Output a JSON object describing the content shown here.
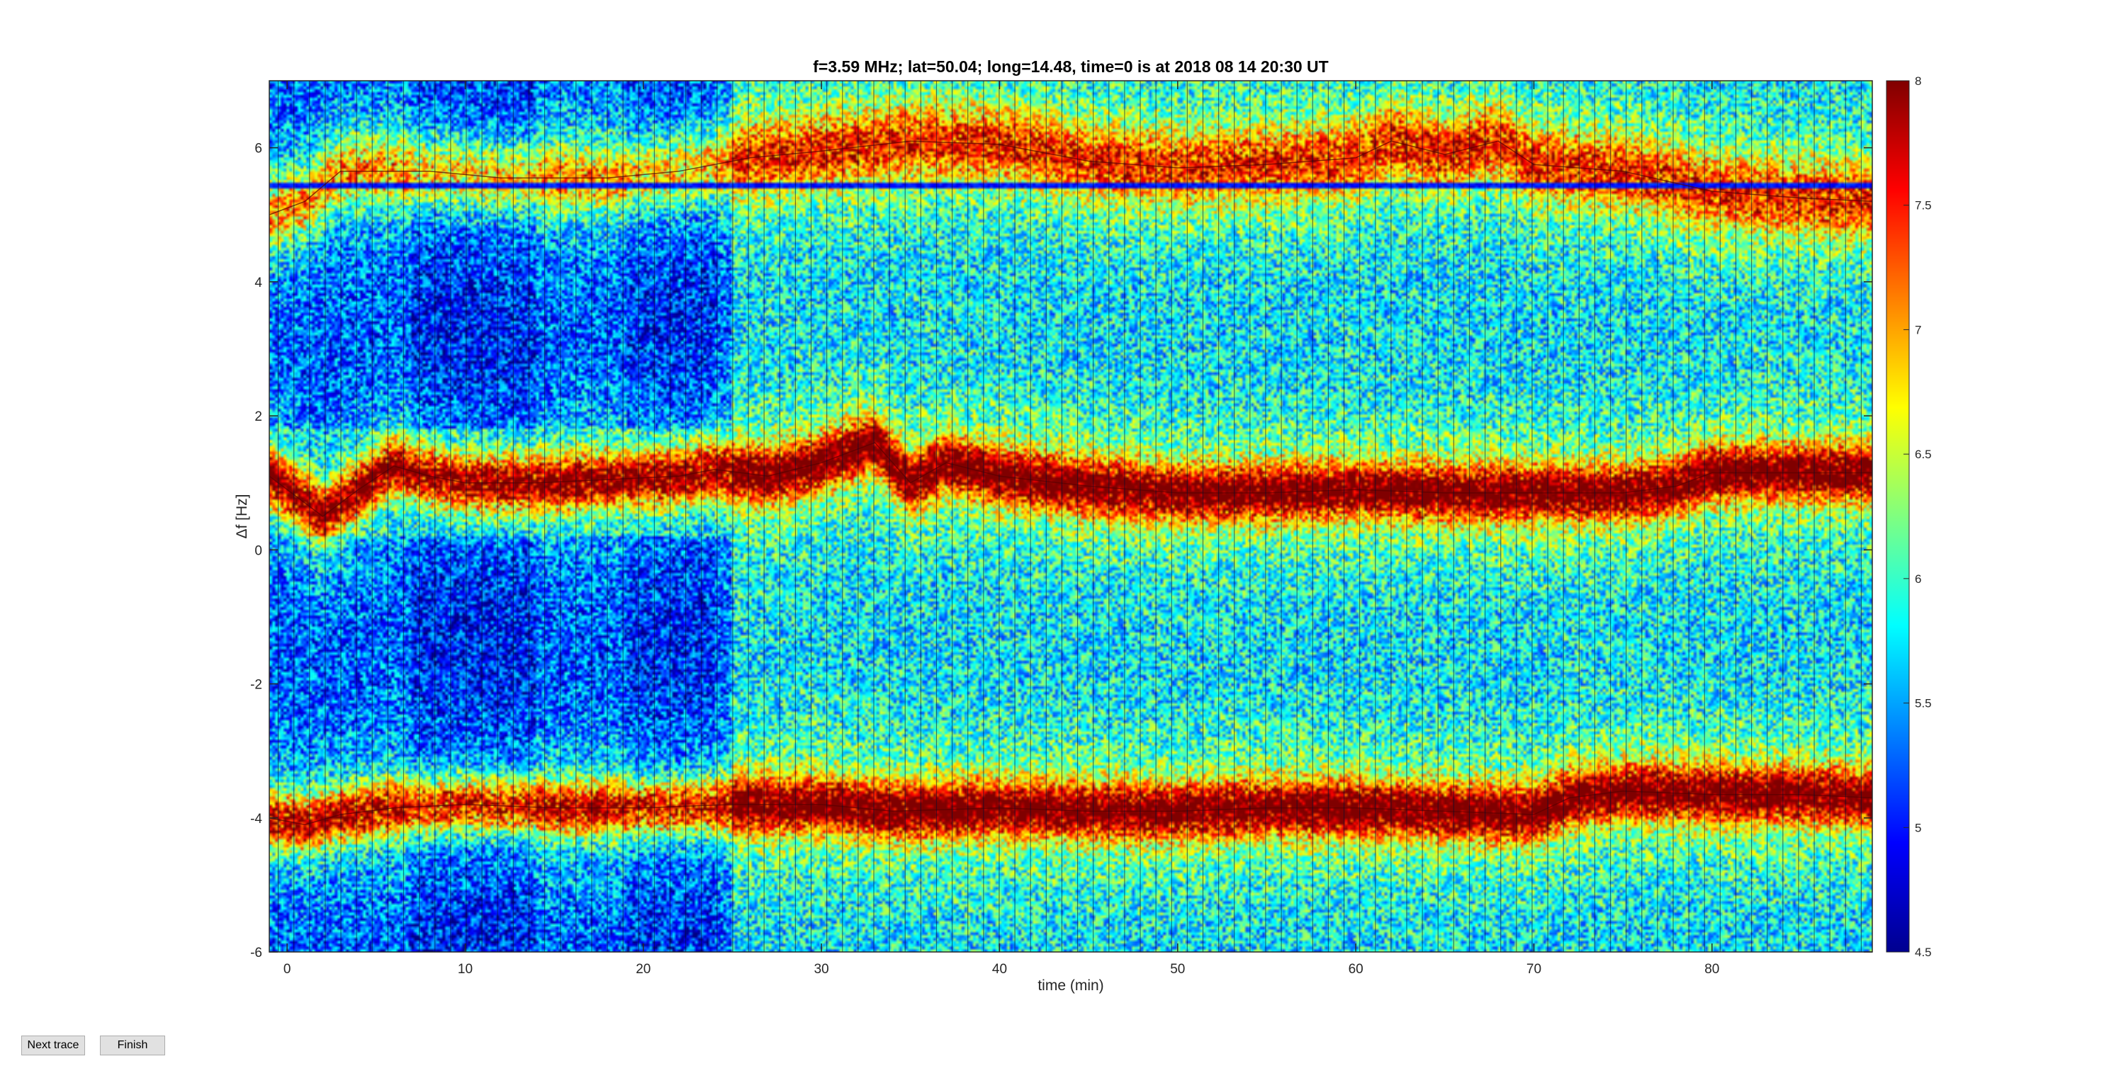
{
  "chart_data": {
    "type": "heatmap",
    "title": "f=3.59 MHz;  lat=50.04; long=14.48, time=0 is at 2018 08 14 20:30 UT",
    "xlabel": "time (min)",
    "ylabel": "Δf [Hz]",
    "xlim": [
      -1,
      89
    ],
    "ylim": [
      -6,
      7
    ],
    "xticks": [
      0,
      10,
      20,
      30,
      40,
      50,
      60,
      70,
      80
    ],
    "xtick_labels": [
      "0",
      "10",
      "20",
      "30",
      "40",
      "50",
      "60",
      "70",
      "80"
    ],
    "yticks": [
      -6,
      -4,
      -2,
      0,
      2,
      4,
      6
    ],
    "ytick_labels": [
      "-6",
      "-4",
      "-2",
      "0",
      "2",
      "4",
      "6"
    ],
    "colormap": "jet",
    "clim": [
      4.5,
      8
    ],
    "colorbar_ticks": [
      4.5,
      5,
      5.5,
      6,
      6.5,
      7,
      7.5,
      8
    ],
    "colorbar_tick_labels": [
      "4.5",
      "5",
      "5.5",
      "6",
      "6.5",
      "7",
      "7.5",
      "8"
    ],
    "dark_band_level": 5.45,
    "traces": [
      {
        "description_key": "central",
        "points": [
          [
            -1,
            1.1
          ],
          [
            1,
            0.7
          ],
          [
            2,
            0.5
          ],
          [
            4,
            0.9
          ],
          [
            6,
            1.25
          ],
          [
            8,
            1.1
          ],
          [
            10,
            1.0
          ],
          [
            14,
            1.0
          ],
          [
            18,
            1.05
          ],
          [
            22,
            1.1
          ],
          [
            24,
            1.2
          ],
          [
            27,
            1.1
          ],
          [
            30,
            1.3
          ],
          [
            33,
            1.6
          ],
          [
            35,
            1.0
          ],
          [
            37,
            1.3
          ],
          [
            40,
            1.1
          ],
          [
            45,
            0.95
          ],
          [
            50,
            0.85
          ],
          [
            55,
            0.85
          ],
          [
            60,
            0.9
          ],
          [
            65,
            0.85
          ],
          [
            70,
            0.85
          ],
          [
            75,
            0.85
          ],
          [
            78,
            0.95
          ],
          [
            80,
            1.15
          ],
          [
            84,
            1.15
          ],
          [
            89,
            1.15
          ]
        ]
      },
      {
        "description_key": "lower",
        "points": [
          [
            -1,
            -4.0
          ],
          [
            1,
            -4.1
          ],
          [
            3,
            -3.95
          ],
          [
            6,
            -3.85
          ],
          [
            10,
            -3.8
          ],
          [
            15,
            -3.85
          ],
          [
            20,
            -3.85
          ],
          [
            25,
            -3.8
          ],
          [
            30,
            -3.8
          ],
          [
            34,
            -3.9
          ],
          [
            40,
            -3.85
          ],
          [
            45,
            -3.9
          ],
          [
            50,
            -3.9
          ],
          [
            55,
            -3.85
          ],
          [
            60,
            -3.85
          ],
          [
            65,
            -3.9
          ],
          [
            70,
            -3.95
          ],
          [
            72,
            -3.7
          ],
          [
            75,
            -3.6
          ],
          [
            80,
            -3.65
          ],
          [
            85,
            -3.65
          ],
          [
            89,
            -3.7
          ]
        ]
      },
      {
        "description_key": "upper",
        "points": [
          [
            -1,
            5.0
          ],
          [
            1,
            5.2
          ],
          [
            3,
            5.65
          ],
          [
            8,
            5.65
          ],
          [
            12,
            5.55
          ],
          [
            18,
            5.55
          ],
          [
            22,
            5.65
          ],
          [
            26,
            5.85
          ],
          [
            30,
            5.95
          ],
          [
            35,
            6.1
          ],
          [
            40,
            6.05
          ],
          [
            45,
            5.8
          ],
          [
            50,
            5.7
          ],
          [
            55,
            5.75
          ],
          [
            60,
            5.85
          ],
          [
            62,
            6.1
          ],
          [
            65,
            5.9
          ],
          [
            68,
            6.1
          ],
          [
            70,
            5.75
          ],
          [
            75,
            5.65
          ],
          [
            80,
            5.35
          ],
          [
            85,
            5.25
          ],
          [
            89,
            5.2
          ]
        ]
      }
    ]
  },
  "buttons": {
    "next_trace": "Next trace",
    "finish": "Finish"
  },
  "colors": {
    "background": "#ffffff",
    "axis": "#262626",
    "button_face": "#e1e1e1"
  }
}
